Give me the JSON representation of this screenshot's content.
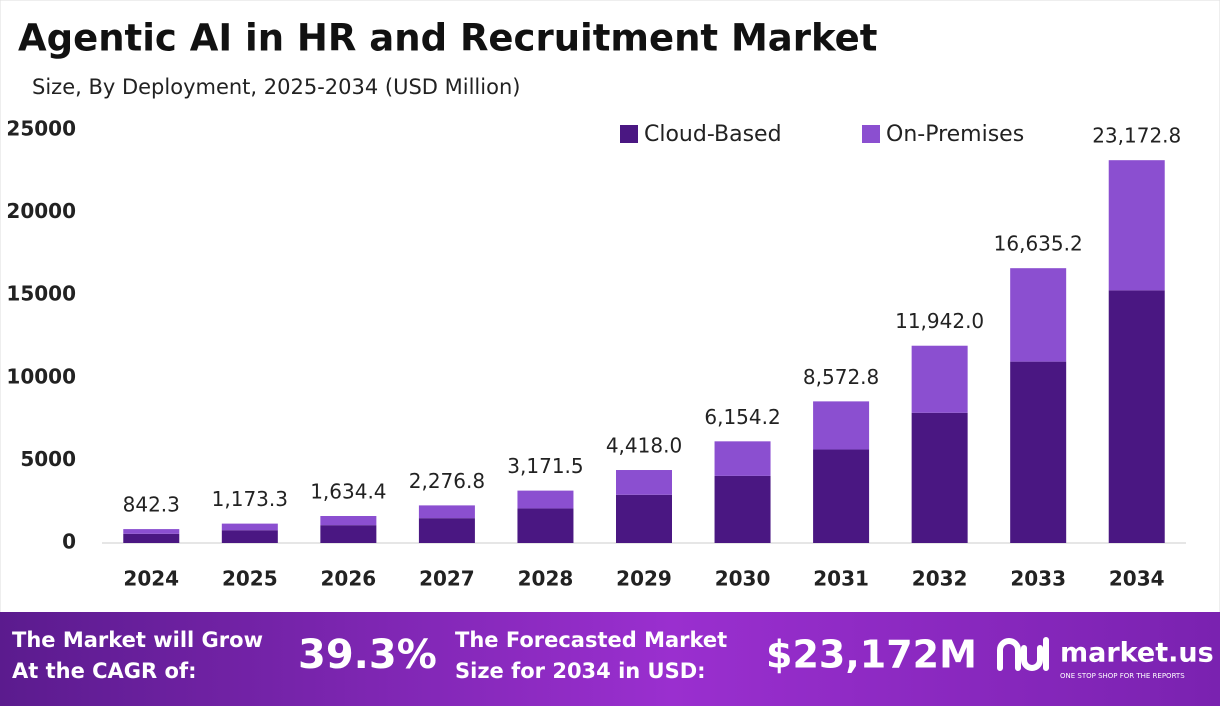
{
  "chart_data": {
    "type": "stacked_bar",
    "title": "Agentic AI in HR and Recruitment Market",
    "subtitle": "Size, By Deployment, 2025-2034 (USD Million)",
    "categories": [
      "2024",
      "2025",
      "2026",
      "2027",
      "2028",
      "2029",
      "2030",
      "2031",
      "2032",
      "2033",
      "2034"
    ],
    "series": [
      {
        "name": "Cloud-Based",
        "color": "#4a1782",
        "values": [
          556,
          774,
          1079,
          1503,
          2093,
          2916,
          4062,
          5658,
          7882,
          10979,
          15294
        ]
      },
      {
        "name": "On-Premises",
        "color": "#8b4fd0",
        "values": [
          286.3,
          399.3,
          555.4,
          773.8,
          1078.5,
          1502.0,
          2092.2,
          2914.8,
          4060.0,
          5656.2,
          7878.8
        ]
      }
    ],
    "totals": [
      842.3,
      1173.3,
      1634.4,
      2276.8,
      3171.5,
      4418.0,
      6154.2,
      8572.8,
      11942.0,
      16635.2,
      23172.8
    ],
    "value_labels": [
      "842.3",
      "1,173.3",
      "1,634.4",
      "2,276.8",
      "3,171.5",
      "4,418.0",
      "6,154.2",
      "8,572.8",
      "11,942.0",
      "16,635.2",
      "23,172.8"
    ],
    "ylim": [
      0,
      25000
    ],
    "yticks": [
      0,
      5000,
      10000,
      15000,
      20000,
      25000
    ],
    "grid": false,
    "legend": "top-right"
  },
  "footer": {
    "cagr_text_1": "The Market will Grow",
    "cagr_text_2": "At the CAGR of:",
    "cagr_value": "39.3%",
    "forecast_text_1": "The Forecasted Market",
    "forecast_text_2": "Size for 2034 in USD:",
    "forecast_value": "$23,172M",
    "brand": "market.us",
    "tagline": "ONE STOP SHOP FOR THE REPORTS"
  }
}
